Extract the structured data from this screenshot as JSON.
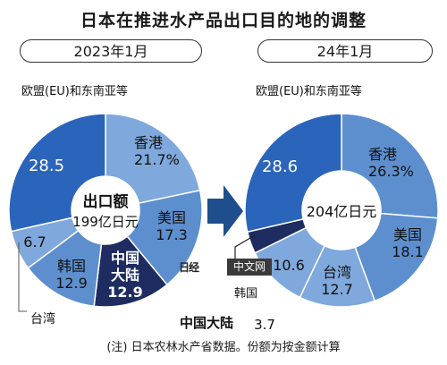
{
  "title": "日本在推进水产品出口目的地的调整",
  "footnote": "(注) 日本农林水产省数据。份额为按金额计算",
  "watermark": {
    "glyph": "日经",
    "text": "中文网"
  },
  "chart_data": [
    {
      "type": "pie",
      "period": "2023年1月",
      "center_title": "出口额",
      "center_value": "199亿日元",
      "slices": [
        {
          "label": "香港",
          "value": 21.7,
          "value_text": "21.7%",
          "color": "#7fa8dc"
        },
        {
          "label": "美国",
          "value": 17.3,
          "value_text": "17.3",
          "color": "#5d8fcf"
        },
        {
          "label": "中国大陆",
          "value": 12.9,
          "value_text": "12.9",
          "color": "#1e2c62"
        },
        {
          "label": "韩国",
          "value": 12.9,
          "value_text": "12.9",
          "color": "#5d8fcf"
        },
        {
          "label": "台湾",
          "value": 6.7,
          "value_text": "6.7",
          "color": "#7fa8dc"
        },
        {
          "label": "欧盟(EU)和东南亚等",
          "value": 28.5,
          "value_text": "28.5",
          "color": "#2b65bb"
        }
      ]
    },
    {
      "type": "pie",
      "period": "24年1月",
      "center_title": "",
      "center_value": "204亿日元",
      "slices": [
        {
          "label": "香港",
          "value": 26.3,
          "value_text": "26.3%",
          "color": "#5d8fcf"
        },
        {
          "label": "美国",
          "value": 18.1,
          "value_text": "18.1",
          "color": "#5d8fcf"
        },
        {
          "label": "台湾",
          "value": 12.7,
          "value_text": "12.7",
          "color": "#7fa8dc"
        },
        {
          "label": "韩国",
          "value": 10.6,
          "value_text": "10.6",
          "color": "#7fa8dc"
        },
        {
          "label": "中国大陆",
          "value": 3.7,
          "value_text": "3.7",
          "color": "#1e2c62"
        },
        {
          "label": "欧盟(EU)和东南亚等",
          "value": 28.6,
          "value_text": "28.6",
          "color": "#2b65bb"
        }
      ]
    }
  ]
}
